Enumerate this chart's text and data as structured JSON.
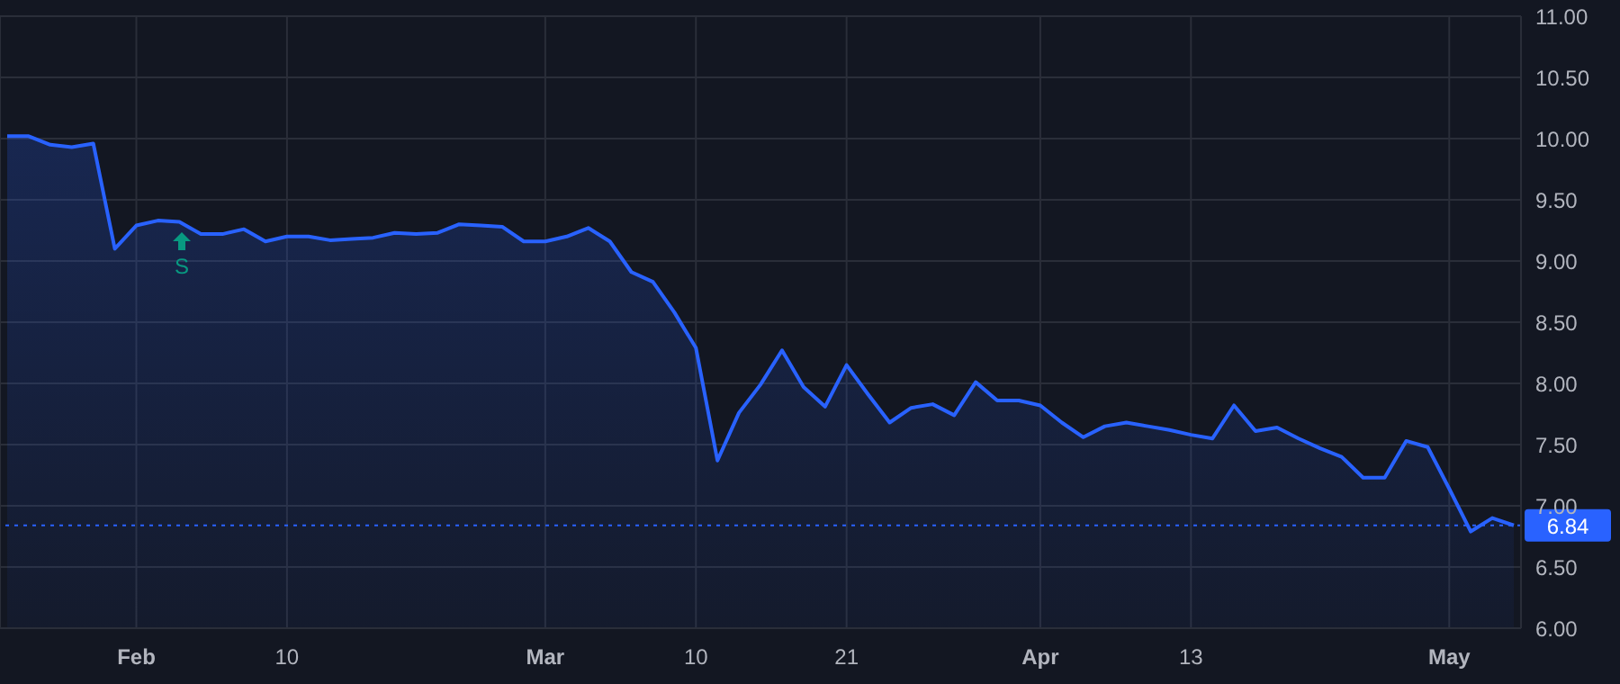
{
  "chart_data": {
    "type": "area",
    "categories": [
      null,
      null,
      null,
      null,
      null,
      null,
      "Feb",
      null,
      null,
      null,
      null,
      null,
      null,
      "10",
      null,
      null,
      null,
      null,
      null,
      null,
      null,
      null,
      null,
      null,
      null,
      "Mar",
      null,
      null,
      null,
      null,
      null,
      null,
      "10",
      null,
      null,
      null,
      null,
      null,
      null,
      "21",
      null,
      null,
      null,
      null,
      null,
      null,
      null,
      null,
      "Apr",
      null,
      null,
      null,
      null,
      null,
      null,
      "13",
      null,
      null,
      null,
      null,
      null,
      null,
      null,
      null,
      null,
      null,
      null,
      "May",
      null,
      null,
      null
    ],
    "series": [
      {
        "color": "#2962ff",
        "values": [
          10.02,
          10.02,
          9.95,
          9.93,
          9.96,
          9.1,
          9.29,
          9.33,
          9.32,
          9.22,
          9.22,
          9.26,
          9.16,
          9.2,
          9.2,
          9.17,
          9.18,
          9.19,
          9.23,
          9.22,
          9.23,
          9.3,
          9.29,
          9.28,
          9.16,
          9.16,
          9.2,
          9.27,
          9.16,
          8.91,
          8.83,
          8.58,
          8.29,
          7.37,
          7.76,
          7.99,
          8.27,
          7.97,
          7.81,
          8.15,
          7.91,
          7.68,
          7.8,
          7.83,
          7.74,
          8.01,
          7.86,
          7.86,
          7.82,
          7.68,
          7.56,
          7.65,
          7.68,
          7.65,
          7.62,
          7.58,
          7.55,
          7.82,
          7.61,
          7.64,
          7.55,
          7.47,
          7.4,
          7.23,
          7.23,
          7.53,
          7.48,
          7.14,
          6.79,
          6.9,
          6.84
        ]
      }
    ],
    "ylim": [
      6,
      11
    ],
    "yticks": [
      {
        "value": 6,
        "label": "6.00"
      },
      {
        "value": 6.5,
        "label": "6.50"
      },
      {
        "value": 7,
        "label": "7.00"
      },
      {
        "value": 7.5,
        "label": "7.50"
      },
      {
        "value": 8,
        "label": "8.00"
      },
      {
        "value": 8.5,
        "label": "8.50"
      },
      {
        "value": 9,
        "label": "9.00"
      },
      {
        "value": 9.5,
        "label": "9.50"
      },
      {
        "value": 10,
        "label": "10.00"
      },
      {
        "value": 10.5,
        "label": "10.50"
      },
      {
        "value": 11,
        "label": "11.00"
      }
    ],
    "ref_lines": [
      {
        "axis": "y",
        "value": 6.84,
        "label": "6.84",
        "color": "#2962ff",
        "line_style": "dotted"
      }
    ],
    "annotations": [
      "S"
    ],
    "grid": true
  }
}
